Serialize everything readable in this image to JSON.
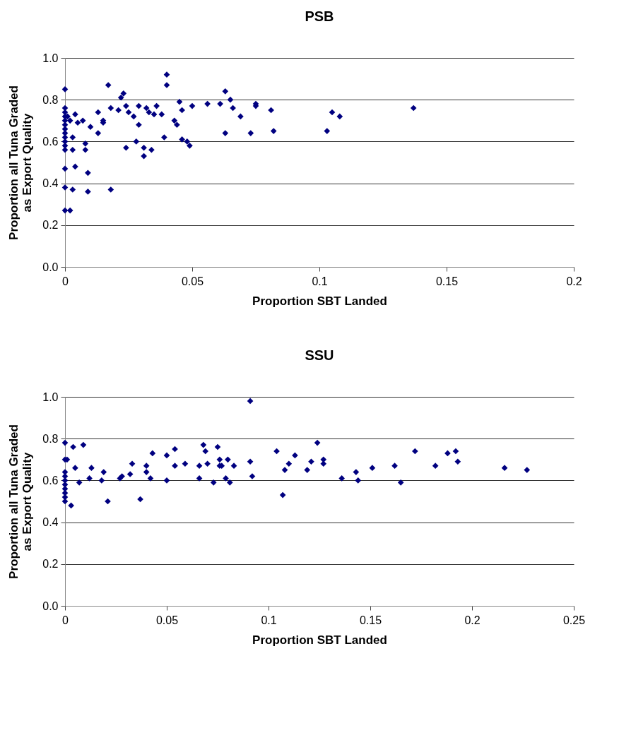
{
  "chart_data": [
    {
      "type": "scatter",
      "title": "PSB",
      "xlabel": "Proportion SBT Landed",
      "ylabel": "Proportion all Tuna Graded\nas Export Quality",
      "xlim": [
        0,
        0.2
      ],
      "xticks": [
        0,
        0.05,
        0.1,
        0.15,
        0.2
      ],
      "ylim": [
        0,
        1
      ],
      "yticks": [
        {
          "value": 0,
          "label": "0.0"
        },
        {
          "value": 0.2,
          "label": "0.2"
        },
        {
          "value": 0.4,
          "label": "0.4"
        },
        {
          "value": 0.6,
          "label": "0.6"
        },
        {
          "value": 0.8,
          "label": "0.8"
        },
        {
          "value": 1,
          "label": "1.0"
        }
      ],
      "grid": "y",
      "marker": "diamond",
      "series": [
        {
          "color": "#000080",
          "x": [
            0,
            0,
            0,
            0,
            0,
            0,
            0,
            0,
            0,
            0,
            0,
            0,
            0,
            0,
            0,
            0.001,
            0.002,
            0.003,
            0.003,
            0.004,
            0.004,
            0.003,
            0.002,
            0.005,
            0.007,
            0.008,
            0.009,
            0.008,
            0.009,
            0.01,
            0.013,
            0.013,
            0.015,
            0.015,
            0.017,
            0.018,
            0.018,
            0.021,
            0.022,
            0.023,
            0.024,
            0.024,
            0.025,
            0.027,
            0.028,
            0.029,
            0.029,
            0.031,
            0.031,
            0.032,
            0.033,
            0.034,
            0.035,
            0.036,
            0.038,
            0.039,
            0.04,
            0.04,
            0.043,
            0.044,
            0.045,
            0.046,
            0.046,
            0.048,
            0.049,
            0.05,
            0.056,
            0.061,
            0.063,
            0.063,
            0.065,
            0.066,
            0.069,
            0.073,
            0.075,
            0.075,
            0.081,
            0.082,
            0.103,
            0.105,
            0.108,
            0.137
          ],
          "values": [
            0.85,
            0.76,
            0.74,
            0.72,
            0.7,
            0.68,
            0.66,
            0.64,
            0.62,
            0.6,
            0.58,
            0.56,
            0.47,
            0.38,
            0.27,
            0.72,
            0.7,
            0.56,
            0.62,
            0.73,
            0.48,
            0.37,
            0.27,
            0.69,
            0.7,
            0.56,
            0.36,
            0.59,
            0.45,
            0.67,
            0.64,
            0.74,
            0.69,
            0.7,
            0.87,
            0.37,
            0.76,
            0.75,
            0.81,
            0.83,
            0.77,
            0.57,
            0.74,
            0.72,
            0.6,
            0.68,
            0.77,
            0.57,
            0.53,
            0.76,
            0.74,
            0.56,
            0.73,
            0.77,
            0.73,
            0.62,
            0.87,
            0.92,
            0.7,
            0.68,
            0.79,
            0.75,
            0.61,
            0.6,
            0.58,
            0.77,
            0.78,
            0.78,
            0.84,
            0.64,
            0.8,
            0.76,
            0.72,
            0.64,
            0.78,
            0.77,
            0.75,
            0.65,
            0.65,
            0.74,
            0.72,
            0.76
          ]
        }
      ]
    },
    {
      "type": "scatter",
      "title": "SSU",
      "xlabel": "Proportion SBT Landed",
      "ylabel": "Proportion all Tuna Graded\nas Export Quality",
      "xlim": [
        0,
        0.25
      ],
      "xticks": [
        0,
        0.05,
        0.1,
        0.15,
        0.2,
        0.25
      ],
      "ylim": [
        0,
        1
      ],
      "yticks": [
        {
          "value": 0,
          "label": "0.0"
        },
        {
          "value": 0.2,
          "label": "0.2"
        },
        {
          "value": 0.4,
          "label": "0.4"
        },
        {
          "value": 0.6,
          "label": "0.6"
        },
        {
          "value": 0.8,
          "label": "0.8"
        },
        {
          "value": 1,
          "label": "1.0"
        }
      ],
      "grid": "y",
      "marker": "diamond",
      "series": [
        {
          "color": "#000080",
          "x": [
            0,
            0,
            0,
            0,
            0,
            0,
            0,
            0,
            0,
            0,
            0.004,
            0.009,
            0.001,
            0.005,
            0.013,
            0.007,
            0.012,
            0.003,
            0.019,
            0.018,
            0.021,
            0.027,
            0.028,
            0.032,
            0.033,
            0.037,
            0.04,
            0.04,
            0.042,
            0.043,
            0.05,
            0.05,
            0.054,
            0.054,
            0.059,
            0.066,
            0.066,
            0.068,
            0.069,
            0.07,
            0.073,
            0.075,
            0.076,
            0.076,
            0.079,
            0.08,
            0.077,
            0.083,
            0.081,
            0.091,
            0.091,
            0.092,
            0.104,
            0.107,
            0.108,
            0.11,
            0.113,
            0.119,
            0.121,
            0.124,
            0.127,
            0.127,
            0.136,
            0.143,
            0.144,
            0.151,
            0.162,
            0.165,
            0.172,
            0.182,
            0.188,
            0.192,
            0.193,
            0.216,
            0.227
          ],
          "values": [
            0.78,
            0.7,
            0.64,
            0.62,
            0.6,
            0.58,
            0.56,
            0.54,
            0.52,
            0.5,
            0.76,
            0.77,
            0.7,
            0.66,
            0.66,
            0.59,
            0.61,
            0.48,
            0.64,
            0.6,
            0.5,
            0.61,
            0.62,
            0.63,
            0.68,
            0.51,
            0.67,
            0.64,
            0.61,
            0.73,
            0.6,
            0.72,
            0.75,
            0.67,
            0.68,
            0.67,
            0.61,
            0.77,
            0.74,
            0.68,
            0.59,
            0.76,
            0.7,
            0.67,
            0.61,
            0.7,
            0.67,
            0.67,
            0.59,
            0.98,
            0.69,
            0.62,
            0.74,
            0.53,
            0.65,
            0.68,
            0.72,
            0.65,
            0.69,
            0.78,
            0.7,
            0.68,
            0.61,
            0.64,
            0.6,
            0.66,
            0.67,
            0.59,
            0.74,
            0.67,
            0.73,
            0.74,
            0.69,
            0.66,
            0.65
          ]
        }
      ]
    }
  ]
}
